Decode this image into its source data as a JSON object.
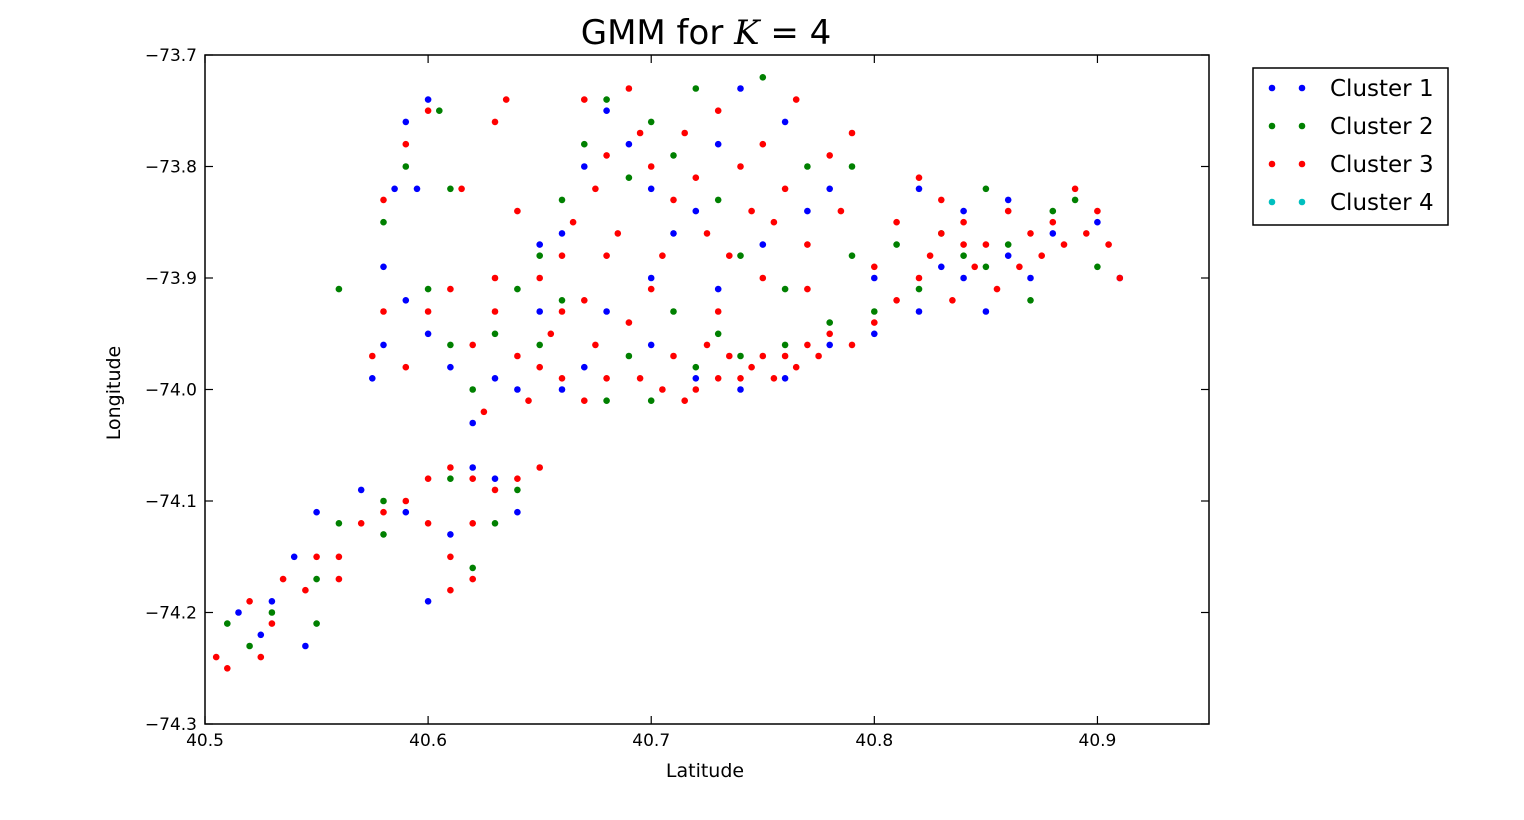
{
  "chart_data": {
    "type": "scatter",
    "title": "GMM for",
    "title_var": "K",
    "title_suffix": " = 4",
    "xlabel": "Latitude",
    "ylabel": "Longitude",
    "xlim": [
      40.5,
      40.95
    ],
    "ylim": [
      -74.3,
      -73.7
    ],
    "xticks": [
      40.5,
      40.6,
      40.7,
      40.8,
      40.9
    ],
    "xtick_labels": [
      "40.5",
      "40.6",
      "40.7",
      "40.8",
      "40.9"
    ],
    "yticks": [
      -73.7,
      -73.8,
      -73.9,
      -74.0,
      -74.1,
      -74.2,
      -74.3
    ],
    "ytick_labels": [
      "−73.7",
      "−73.8",
      "−73.9",
      "−74.0",
      "−74.1",
      "−74.2",
      "−74.3"
    ],
    "grid": false,
    "legend_position": "outside-top-right",
    "legend": [
      {
        "name": "Cluster 1",
        "color": "#0000ff"
      },
      {
        "name": "Cluster 2",
        "color": "#008000"
      },
      {
        "name": "Cluster 3",
        "color": "#ff0000"
      },
      {
        "name": "Cluster 4",
        "color": "#00bfbf"
      }
    ],
    "series": [
      {
        "name": "Cluster 1",
        "color": "#0000ff",
        "points": [
          [
            40.59,
            -73.76
          ],
          [
            40.6,
            -73.74
          ],
          [
            40.585,
            -73.82
          ],
          [
            40.595,
            -73.82
          ],
          [
            40.58,
            -73.89
          ],
          [
            40.58,
            -73.96
          ],
          [
            40.575,
            -73.99
          ],
          [
            40.59,
            -73.92
          ],
          [
            40.6,
            -73.95
          ],
          [
            40.61,
            -73.98
          ],
          [
            40.62,
            -74.03
          ],
          [
            40.63,
            -73.99
          ],
          [
            40.64,
            -74.0
          ],
          [
            40.65,
            -73.93
          ],
          [
            40.66,
            -73.86
          ],
          [
            40.67,
            -73.8
          ],
          [
            40.68,
            -73.75
          ],
          [
            40.69,
            -73.78
          ],
          [
            40.7,
            -73.82
          ],
          [
            40.71,
            -73.86
          ],
          [
            40.72,
            -73.84
          ],
          [
            40.73,
            -73.78
          ],
          [
            40.74,
            -73.73
          ],
          [
            40.76,
            -73.76
          ],
          [
            40.78,
            -73.82
          ],
          [
            40.68,
            -73.93
          ],
          [
            40.7,
            -73.96
          ],
          [
            40.72,
            -73.99
          ],
          [
            40.74,
            -74.0
          ],
          [
            40.76,
            -73.99
          ],
          [
            40.78,
            -73.96
          ],
          [
            40.8,
            -73.95
          ],
          [
            40.82,
            -73.93
          ],
          [
            40.84,
            -73.9
          ],
          [
            40.86,
            -73.88
          ],
          [
            40.88,
            -73.86
          ],
          [
            40.9,
            -73.85
          ],
          [
            40.91,
            -73.9
          ],
          [
            40.82,
            -73.82
          ],
          [
            40.84,
            -73.84
          ],
          [
            40.86,
            -73.83
          ],
          [
            40.87,
            -73.9
          ],
          [
            40.8,
            -73.9
          ],
          [
            40.85,
            -73.93
          ],
          [
            40.62,
            -74.07
          ],
          [
            40.59,
            -74.11
          ],
          [
            40.55,
            -74.11
          ],
          [
            40.54,
            -74.15
          ],
          [
            40.53,
            -74.19
          ],
          [
            40.525,
            -74.22
          ],
          [
            40.515,
            -74.2
          ],
          [
            40.545,
            -74.23
          ],
          [
            40.6,
            -74.19
          ],
          [
            40.64,
            -74.11
          ],
          [
            40.57,
            -74.09
          ],
          [
            40.61,
            -74.13
          ],
          [
            40.63,
            -74.08
          ],
          [
            40.66,
            -74.0
          ],
          [
            40.67,
            -73.98
          ],
          [
            40.65,
            -73.87
          ],
          [
            40.7,
            -73.9
          ],
          [
            40.73,
            -73.91
          ],
          [
            40.75,
            -73.87
          ],
          [
            40.77,
            -73.84
          ],
          [
            40.83,
            -73.89
          ]
        ]
      },
      {
        "name": "Cluster 2",
        "color": "#008000",
        "points": [
          [
            40.56,
            -73.91
          ],
          [
            40.61,
            -73.82
          ],
          [
            40.605,
            -73.75
          ],
          [
            40.59,
            -73.8
          ],
          [
            40.58,
            -73.85
          ],
          [
            40.6,
            -73.91
          ],
          [
            40.61,
            -73.96
          ],
          [
            40.62,
            -74.0
          ],
          [
            40.63,
            -73.95
          ],
          [
            40.64,
            -73.91
          ],
          [
            40.65,
            -73.88
          ],
          [
            40.66,
            -73.83
          ],
          [
            40.67,
            -73.78
          ],
          [
            40.68,
            -73.74
          ],
          [
            40.69,
            -73.81
          ],
          [
            40.7,
            -73.76
          ],
          [
            40.71,
            -73.79
          ],
          [
            40.72,
            -73.73
          ],
          [
            40.73,
            -73.83
          ],
          [
            40.75,
            -73.72
          ],
          [
            40.77,
            -73.8
          ],
          [
            40.79,
            -73.8
          ],
          [
            40.68,
            -74.01
          ],
          [
            40.7,
            -74.01
          ],
          [
            40.72,
            -73.98
          ],
          [
            40.74,
            -73.97
          ],
          [
            40.76,
            -73.96
          ],
          [
            40.78,
            -73.94
          ],
          [
            40.8,
            -73.93
          ],
          [
            40.82,
            -73.91
          ],
          [
            40.84,
            -73.88
          ],
          [
            40.86,
            -73.87
          ],
          [
            40.88,
            -73.84
          ],
          [
            40.89,
            -73.83
          ],
          [
            40.9,
            -73.89
          ],
          [
            40.85,
            -73.82
          ],
          [
            40.83,
            -73.86
          ],
          [
            40.87,
            -73.92
          ],
          [
            40.81,
            -73.87
          ],
          [
            40.61,
            -74.08
          ],
          [
            40.64,
            -74.09
          ],
          [
            40.62,
            -74.16
          ],
          [
            40.58,
            -74.13
          ],
          [
            40.56,
            -74.12
          ],
          [
            40.55,
            -74.17
          ],
          [
            40.53,
            -74.2
          ],
          [
            40.52,
            -74.23
          ],
          [
            40.51,
            -74.21
          ],
          [
            40.55,
            -74.21
          ],
          [
            40.58,
            -74.1
          ],
          [
            40.63,
            -74.12
          ],
          [
            40.65,
            -73.96
          ],
          [
            40.66,
            -73.92
          ],
          [
            40.69,
            -73.97
          ],
          [
            40.71,
            -73.93
          ],
          [
            40.74,
            -73.88
          ],
          [
            40.76,
            -73.91
          ],
          [
            40.73,
            -73.95
          ],
          [
            40.79,
            -73.88
          ],
          [
            40.85,
            -73.89
          ]
        ]
      },
      {
        "name": "Cluster 3",
        "color": "#ff0000",
        "points": [
          [
            40.6,
            -73.75
          ],
          [
            40.59,
            -73.78
          ],
          [
            40.58,
            -73.83
          ],
          [
            40.615,
            -73.82
          ],
          [
            40.635,
            -73.74
          ],
          [
            40.575,
            -73.97
          ],
          [
            40.58,
            -73.93
          ],
          [
            40.59,
            -73.98
          ],
          [
            40.6,
            -73.93
          ],
          [
            40.61,
            -73.91
          ],
          [
            40.62,
            -73.96
          ],
          [
            40.625,
            -74.02
          ],
          [
            40.63,
            -73.93
          ],
          [
            40.64,
            -73.97
          ],
          [
            40.645,
            -74.01
          ],
          [
            40.65,
            -73.9
          ],
          [
            40.655,
            -73.95
          ],
          [
            40.66,
            -73.88
          ],
          [
            40.665,
            -73.85
          ],
          [
            40.67,
            -73.74
          ],
          [
            40.675,
            -73.82
          ],
          [
            40.68,
            -73.79
          ],
          [
            40.685,
            -73.86
          ],
          [
            40.69,
            -73.73
          ],
          [
            40.695,
            -73.77
          ],
          [
            40.7,
            -73.8
          ],
          [
            40.705,
            -73.88
          ],
          [
            40.71,
            -73.83
          ],
          [
            40.715,
            -73.77
          ],
          [
            40.72,
            -73.81
          ],
          [
            40.725,
            -73.86
          ],
          [
            40.73,
            -73.75
          ],
          [
            40.735,
            -73.88
          ],
          [
            40.74,
            -73.8
          ],
          [
            40.745,
            -73.84
          ],
          [
            40.75,
            -73.78
          ],
          [
            40.755,
            -73.85
          ],
          [
            40.76,
            -73.82
          ],
          [
            40.765,
            -73.74
          ],
          [
            40.77,
            -73.87
          ],
          [
            40.78,
            -73.79
          ],
          [
            40.785,
            -73.84
          ],
          [
            40.79,
            -73.77
          ],
          [
            40.67,
            -73.92
          ],
          [
            40.675,
            -73.96
          ],
          [
            40.68,
            -73.99
          ],
          [
            40.69,
            -73.94
          ],
          [
            40.695,
            -73.99
          ],
          [
            40.7,
            -73.91
          ],
          [
            40.705,
            -74.0
          ],
          [
            40.71,
            -73.97
          ],
          [
            40.715,
            -74.01
          ],
          [
            40.72,
            -74.0
          ],
          [
            40.725,
            -73.96
          ],
          [
            40.73,
            -73.99
          ],
          [
            40.735,
            -73.97
          ],
          [
            40.74,
            -73.99
          ],
          [
            40.745,
            -73.98
          ],
          [
            40.75,
            -73.97
          ],
          [
            40.755,
            -73.99
          ],
          [
            40.76,
            -73.97
          ],
          [
            40.765,
            -73.98
          ],
          [
            40.77,
            -73.96
          ],
          [
            40.775,
            -73.97
          ],
          [
            40.78,
            -73.95
          ],
          [
            40.79,
            -73.96
          ],
          [
            40.8,
            -73.94
          ],
          [
            40.81,
            -73.92
          ],
          [
            40.82,
            -73.9
          ],
          [
            40.825,
            -73.88
          ],
          [
            40.83,
            -73.86
          ],
          [
            40.835,
            -73.92
          ],
          [
            40.84,
            -73.85
          ],
          [
            40.845,
            -73.89
          ],
          [
            40.85,
            -73.87
          ],
          [
            40.855,
            -73.91
          ],
          [
            40.86,
            -73.84
          ],
          [
            40.865,
            -73.89
          ],
          [
            40.87,
            -73.86
          ],
          [
            40.875,
            -73.88
          ],
          [
            40.88,
            -73.85
          ],
          [
            40.885,
            -73.87
          ],
          [
            40.89,
            -73.82
          ],
          [
            40.895,
            -73.86
          ],
          [
            40.9,
            -73.84
          ],
          [
            40.905,
            -73.87
          ],
          [
            40.91,
            -73.9
          ],
          [
            40.82,
            -73.81
          ],
          [
            40.83,
            -73.83
          ],
          [
            40.84,
            -73.87
          ],
          [
            40.81,
            -73.85
          ],
          [
            40.8,
            -73.89
          ],
          [
            40.61,
            -74.07
          ],
          [
            40.62,
            -74.08
          ],
          [
            40.63,
            -74.09
          ],
          [
            40.64,
            -74.08
          ],
          [
            40.6,
            -74.08
          ],
          [
            40.59,
            -74.1
          ],
          [
            40.58,
            -74.11
          ],
          [
            40.57,
            -74.12
          ],
          [
            40.56,
            -74.15
          ],
          [
            40.55,
            -74.15
          ],
          [
            40.545,
            -74.18
          ],
          [
            40.535,
            -74.17
          ],
          [
            40.53,
            -74.21
          ],
          [
            40.525,
            -74.24
          ],
          [
            40.51,
            -74.25
          ],
          [
            40.505,
            -74.24
          ],
          [
            40.52,
            -74.19
          ],
          [
            40.56,
            -74.17
          ],
          [
            40.61,
            -74.18
          ],
          [
            40.62,
            -74.17
          ],
          [
            40.61,
            -74.15
          ],
          [
            40.6,
            -74.12
          ],
          [
            40.62,
            -74.12
          ],
          [
            40.65,
            -74.07
          ],
          [
            40.66,
            -73.99
          ],
          [
            40.67,
            -74.01
          ],
          [
            40.65,
            -73.98
          ],
          [
            40.63,
            -73.9
          ],
          [
            40.66,
            -73.93
          ],
          [
            40.68,
            -73.88
          ],
          [
            40.73,
            -73.93
          ],
          [
            40.75,
            -73.9
          ],
          [
            40.77,
            -73.91
          ],
          [
            40.64,
            -73.84
          ],
          [
            40.63,
            -73.76
          ]
        ]
      },
      {
        "name": "Cluster 4",
        "color": "#00bfbf",
        "points": []
      }
    ]
  }
}
